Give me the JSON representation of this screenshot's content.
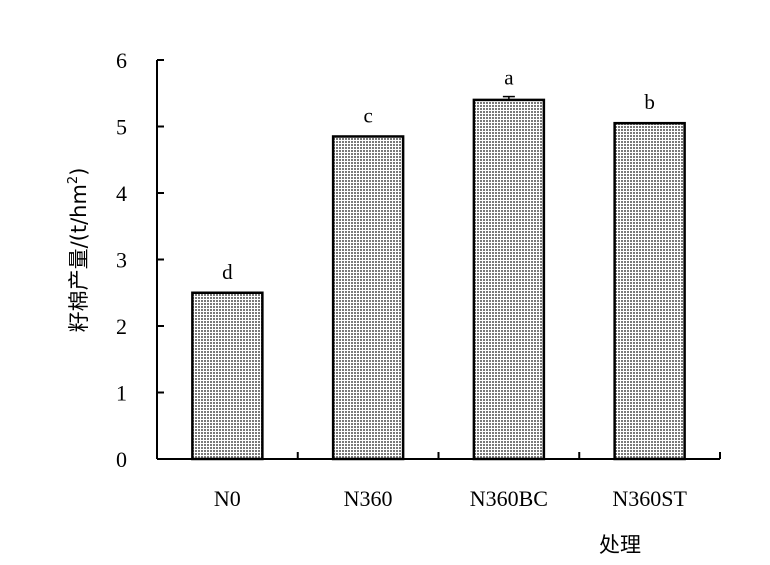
{
  "chart_data": {
    "type": "bar",
    "title": "",
    "xlabel": "处理",
    "ylabel": "籽棉产量/(t/hm",
    "ylabel_sup": "2",
    "ylabel_close": ")",
    "categories": [
      "N0",
      "N360",
      "N360BC",
      "N360ST"
    ],
    "values": [
      2.5,
      4.85,
      5.4,
      5.05
    ],
    "errors": [
      0.0,
      0.0,
      0.05,
      0.0
    ],
    "significance": [
      "d",
      "c",
      "a",
      "b"
    ],
    "ylim": [
      0,
      6
    ],
    "yticks": [
      "0",
      "1",
      "2",
      "3",
      "4",
      "5",
      "6"
    ],
    "grid": false,
    "legend": "none",
    "colors": {
      "bar_fill": "#a8a8a8",
      "bar_stroke": "#000000",
      "axis": "#000000"
    }
  }
}
